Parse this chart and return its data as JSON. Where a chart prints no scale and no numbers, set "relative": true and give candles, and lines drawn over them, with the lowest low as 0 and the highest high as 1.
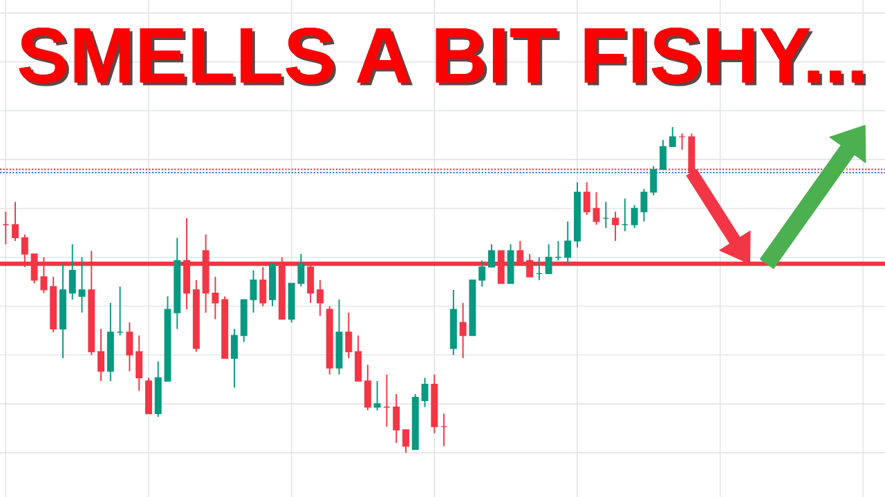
{
  "chart_data": {
    "type": "candlestick",
    "title": "SMELLS A BIT FISHY...",
    "relative": true,
    "tick_labels": false,
    "grid": true,
    "categories": [
      null,
      null,
      null,
      null,
      null,
      null,
      null,
      null,
      null,
      null,
      null,
      null,
      null,
      null,
      null,
      null,
      null,
      null,
      null,
      null,
      null,
      null,
      null,
      null,
      null,
      null,
      null,
      null,
      null,
      null,
      null,
      null,
      null,
      null,
      null,
      null,
      null,
      null,
      null,
      null,
      null,
      null,
      null,
      null,
      null,
      null,
      null,
      null,
      null,
      null,
      null,
      null,
      null,
      null,
      null,
      null,
      null,
      null,
      null,
      null,
      null,
      null,
      null,
      null,
      null,
      null,
      null,
      null,
      null,
      null,
      null,
      null,
      null
    ],
    "ohlc": [
      [
        0.7,
        0.74,
        0.64,
        0.7
      ],
      [
        0.7,
        0.77,
        0.65,
        0.66
      ],
      [
        0.66,
        0.67,
        0.57,
        0.61
      ],
      [
        0.61,
        0.61,
        0.52,
        0.53
      ],
      [
        0.54,
        0.6,
        0.49,
        0.5
      ],
      [
        0.51,
        0.54,
        0.37,
        0.38
      ],
      [
        0.38,
        0.58,
        0.29,
        0.5
      ],
      [
        0.49,
        0.64,
        0.47,
        0.56
      ],
      [
        0.48,
        0.6,
        0.43,
        0.5
      ],
      [
        0.5,
        0.62,
        0.3,
        0.31
      ],
      [
        0.31,
        0.38,
        0.22,
        0.25
      ],
      [
        0.25,
        0.46,
        0.22,
        0.37
      ],
      [
        0.37,
        0.51,
        0.36,
        0.37
      ],
      [
        0.37,
        0.4,
        0.25,
        0.3
      ],
      [
        0.31,
        0.36,
        0.19,
        0.23
      ],
      [
        0.22,
        0.23,
        0.12,
        0.12
      ],
      [
        0.12,
        0.28,
        0.11,
        0.23
      ],
      [
        0.22,
        0.48,
        0.22,
        0.44
      ],
      [
        0.43,
        0.66,
        0.38,
        0.59
      ],
      [
        0.59,
        0.72,
        0.44,
        0.49
      ],
      [
        0.5,
        0.53,
        0.31,
        0.32
      ],
      [
        0.62,
        0.67,
        0.43,
        0.49
      ],
      [
        0.49,
        0.54,
        0.41,
        0.46
      ],
      [
        0.47,
        0.48,
        0.29,
        0.29
      ],
      [
        0.29,
        0.38,
        0.2,
        0.36
      ],
      [
        0.36,
        0.47,
        0.34,
        0.47
      ],
      [
        0.47,
        0.56,
        0.43,
        0.53
      ],
      [
        0.53,
        0.57,
        0.45,
        0.46
      ],
      [
        0.47,
        0.58,
        0.45,
        0.58
      ],
      [
        0.58,
        0.6,
        0.41,
        0.41
      ],
      [
        0.41,
        0.52,
        0.4,
        0.52
      ],
      [
        0.52,
        0.61,
        0.51,
        0.58
      ],
      [
        0.57,
        0.58,
        0.46,
        0.49
      ],
      [
        0.5,
        0.53,
        0.42,
        0.46
      ],
      [
        0.44,
        0.45,
        0.24,
        0.26
      ],
      [
        0.26,
        0.47,
        0.24,
        0.37
      ],
      [
        0.37,
        0.43,
        0.29,
        0.31
      ],
      [
        0.31,
        0.36,
        0.22,
        0.22
      ],
      [
        0.22,
        0.27,
        0.13,
        0.14
      ],
      [
        0.14,
        0.22,
        0.13,
        0.15
      ],
      [
        0.14,
        0.24,
        0.08,
        0.14
      ],
      [
        0.14,
        0.18,
        0.03,
        0.07
      ],
      [
        0.07,
        0.07,
        0,
        0.02
      ],
      [
        0.01,
        0.18,
        0.01,
        0.17
      ],
      [
        0.16,
        0.23,
        0.14,
        0.21
      ],
      [
        0.21,
        0.24,
        0.06,
        0.08
      ],
      [
        0.08,
        0.12,
        0.02,
        0.08
      ],
      [
        0.32,
        0.5,
        0.3,
        0.44
      ],
      [
        0.4,
        0.46,
        0.29,
        0.36
      ],
      [
        0.36,
        0.53,
        0.36,
        0.53
      ],
      [
        0.53,
        0.59,
        0.51,
        0.57
      ],
      [
        0.57,
        0.64,
        0.57,
        0.62
      ],
      [
        0.62,
        0.62,
        0.52,
        0.52
      ],
      [
        0.52,
        0.64,
        0.52,
        0.62
      ],
      [
        0.62,
        0.65,
        0.58,
        0.58
      ],
      [
        0.59,
        0.61,
        0.54,
        0.54
      ],
      [
        0.55,
        0.6,
        0.53,
        0.55
      ],
      [
        0.55,
        0.64,
        0.55,
        0.6
      ],
      [
        0.6,
        0.65,
        0.59,
        0.6
      ],
      [
        0.6,
        0.71,
        0.58,
        0.65
      ],
      [
        0.65,
        0.83,
        0.63,
        0.8
      ],
      [
        0.8,
        0.83,
        0.73,
        0.74
      ],
      [
        0.75,
        0.8,
        0.7,
        0.71
      ],
      [
        0.72,
        0.77,
        0.69,
        0.72
      ],
      [
        0.72,
        0.74,
        0.65,
        0.7
      ],
      [
        0.7,
        0.78,
        0.68,
        0.7
      ],
      [
        0.7,
        0.76,
        0.69,
        0.75
      ],
      [
        0.74,
        0.81,
        0.71,
        0.8
      ],
      [
        0.8,
        0.88,
        0.79,
        0.87
      ],
      [
        0.87,
        0.96,
        0.87,
        0.94
      ],
      [
        0.94,
        1.0,
        0.94,
        0.97
      ],
      [
        0.97,
        0.98,
        0.93,
        0.97
      ],
      [
        0.97,
        0.98,
        0.86,
        0.86
      ]
    ],
    "colors": [
      "#f23645",
      "#f23645",
      "#f23645",
      "#f23645",
      "#f23645",
      "#f23645",
      "#089981",
      "#089981",
      "#089981",
      "#f23645",
      "#f23645",
      "#089981",
      "#089981",
      "#f23645",
      "#f23645",
      "#f23645",
      "#089981",
      "#089981",
      "#089981",
      "#f23645",
      "#f23645",
      "#f23645",
      "#f23645",
      "#f23645",
      "#089981",
      "#089981",
      "#089981",
      "#f23645",
      "#089981",
      "#f23645",
      "#089981",
      "#089981",
      "#f23645",
      "#f23645",
      "#f23645",
      "#089981",
      "#f23645",
      "#f23645",
      "#f23645",
      "#089981",
      "#f23645",
      "#f23645",
      "#f23645",
      "#089981",
      "#089981",
      "#f23645",
      "#f23645",
      "#089981",
      "#f23645",
      "#089981",
      "#089981",
      "#089981",
      "#f23645",
      "#089981",
      "#f23645",
      "#f23645",
      "#089981",
      "#089981",
      "#089981",
      "#089981",
      "#089981",
      "#f23645",
      "#f23645",
      "#089981",
      "#f23645",
      "#089981",
      "#089981",
      "#089981",
      "#089981",
      "#089981",
      "#089981",
      "#f23645",
      "#f23645"
    ],
    "ref_lines": [
      {
        "axis": "y",
        "value": 0.58,
        "color": "#f23645",
        "line_style": "solid"
      },
      {
        "axis": "y",
        "value": 0.87,
        "color": "#f23645",
        "line_style": "dotted"
      },
      {
        "axis": "y",
        "value": 0.86,
        "color": "#2962ff",
        "line_style": "dotted"
      }
    ]
  }
}
